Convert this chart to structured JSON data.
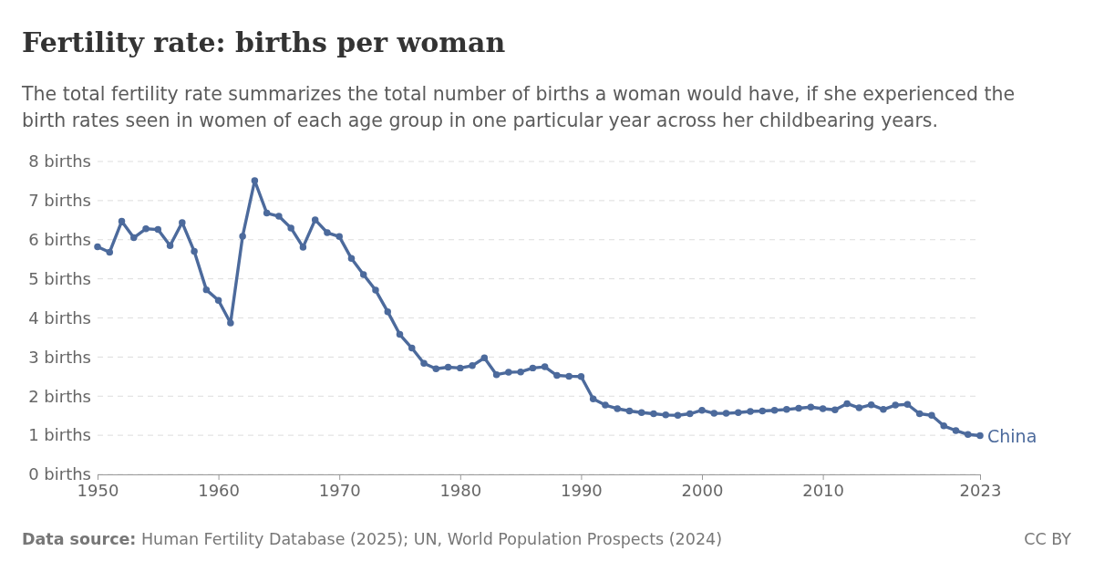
{
  "chart_data": {
    "type": "line",
    "title": "Fertility rate: births per woman",
    "subtitle": "The total fertility rate summarizes the total number of births a woman would have, if she experienced the birth rates seen in women of each age group in one particular year across her childbearing years.",
    "annotations": [
      "Data source: Human Fertility Database (2025); UN, World Population Prospects (2024)",
      "CC BY"
    ],
    "x": [
      1950,
      1951,
      1952,
      1953,
      1954,
      1955,
      1956,
      1957,
      1958,
      1959,
      1960,
      1961,
      1962,
      1963,
      1964,
      1965,
      1966,
      1967,
      1968,
      1969,
      1970,
      1971,
      1972,
      1973,
      1974,
      1975,
      1976,
      1977,
      1978,
      1979,
      1980,
      1981,
      1982,
      1983,
      1984,
      1985,
      1986,
      1987,
      1988,
      1989,
      1990,
      1991,
      1992,
      1993,
      1994,
      1995,
      1996,
      1997,
      1998,
      1999,
      2000,
      2001,
      2002,
      2003,
      2004,
      2005,
      2006,
      2007,
      2008,
      2009,
      2010,
      2011,
      2012,
      2013,
      2014,
      2015,
      2016,
      2017,
      2018,
      2019,
      2020,
      2021,
      2022,
      2023
    ],
    "series": [
      {
        "name": "China",
        "color": "#4c6a9c",
        "values": [
          5.82,
          5.68,
          6.47,
          6.05,
          6.28,
          6.26,
          5.85,
          6.44,
          5.7,
          4.72,
          4.45,
          3.87,
          6.09,
          7.51,
          6.68,
          6.6,
          6.3,
          5.81,
          6.51,
          6.18,
          6.08,
          5.52,
          5.11,
          4.71,
          4.16,
          3.58,
          3.23,
          2.84,
          2.7,
          2.74,
          2.72,
          2.78,
          2.98,
          2.55,
          2.61,
          2.62,
          2.72,
          2.75,
          2.53,
          2.51,
          2.5,
          1.93,
          1.77,
          1.68,
          1.62,
          1.58,
          1.55,
          1.52,
          1.51,
          1.55,
          1.64,
          1.56,
          1.56,
          1.58,
          1.61,
          1.62,
          1.64,
          1.66,
          1.69,
          1.72,
          1.68,
          1.65,
          1.81,
          1.7,
          1.78,
          1.66,
          1.77,
          1.79,
          1.55,
          1.51,
          1.24,
          1.12,
          1.02,
          0.99
        ]
      }
    ],
    "xlim": [
      1950,
      2023
    ],
    "xticks": [
      1950,
      1960,
      1970,
      1980,
      1990,
      2000,
      2010,
      2023
    ],
    "ylim": [
      0,
      8
    ],
    "yticks": [
      {
        "value": 0,
        "label": "0 births"
      },
      {
        "value": 1,
        "label": "1 births"
      },
      {
        "value": 2,
        "label": "2 births"
      },
      {
        "value": 3,
        "label": "3 births"
      },
      {
        "value": 4,
        "label": "4 births"
      },
      {
        "value": 5,
        "label": "5 births"
      },
      {
        "value": 6,
        "label": "6 births"
      },
      {
        "value": 7,
        "label": "7 births"
      },
      {
        "value": 8,
        "label": "8 births"
      }
    ],
    "grid": "y",
    "marker": "circle",
    "line_style": "solid"
  }
}
